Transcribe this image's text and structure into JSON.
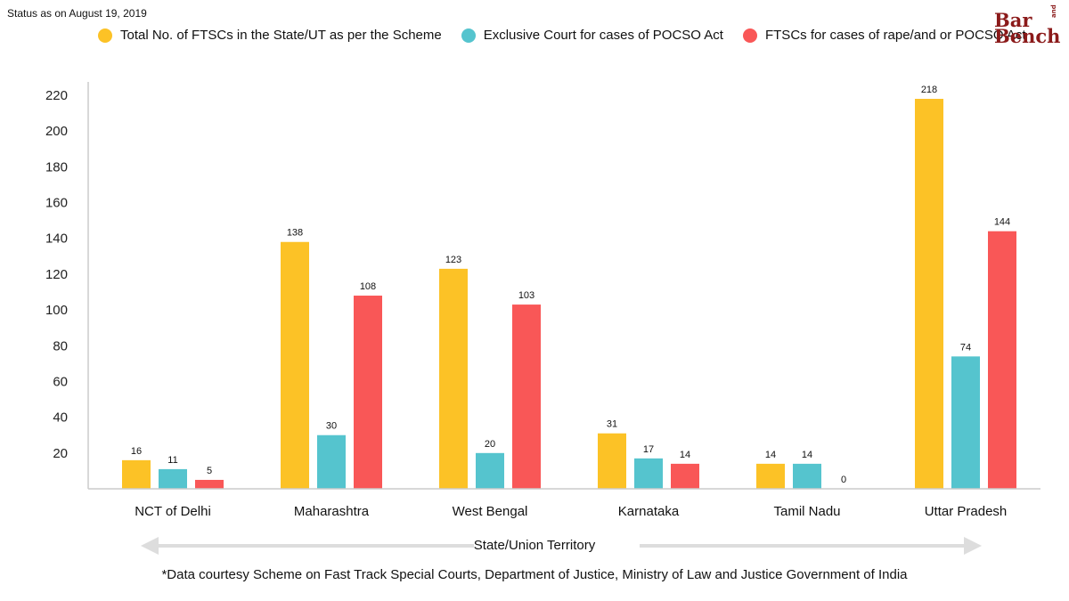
{
  "status_text": "Status as on August 19, 2019",
  "logo": {
    "line1": "Bar",
    "line2": "Bench",
    "small": "and"
  },
  "colors": {
    "total": "#FCC226",
    "pocso": "#55C4CE",
    "ftsc": "#F95757",
    "axis": "#cccccc",
    "arrow": "#dddddd"
  },
  "chart_data": {
    "type": "bar",
    "categories": [
      "NCT of Delhi",
      "Maharashtra",
      "West Bengal",
      "Karnataka",
      "Tamil Nadu",
      "Uttar Pradesh"
    ],
    "series": [
      {
        "name": "Total No. of FTSCs in the State/UT as per the Scheme",
        "values": [
          16,
          138,
          123,
          31,
          14,
          218
        ]
      },
      {
        "name": "Exclusive Court for cases of POCSO Act",
        "values": [
          11,
          30,
          20,
          17,
          14,
          74
        ]
      },
      {
        "name": "FTSCs for cases of rape/and or POCSO Act",
        "values": [
          5,
          108,
          103,
          14,
          0,
          144
        ]
      }
    ],
    "xlabel": "State/Union Territory",
    "ylabel": "",
    "yticks": [
      20,
      40,
      60,
      80,
      100,
      120,
      140,
      160,
      180,
      200,
      220
    ],
    "ylim": [
      0,
      220
    ],
    "legend_position": "top",
    "grid": false
  },
  "source_text": "*Data courtesy Scheme on Fast Track Special Courts, Department of Justice, Ministry of Law and Justice Government of India"
}
